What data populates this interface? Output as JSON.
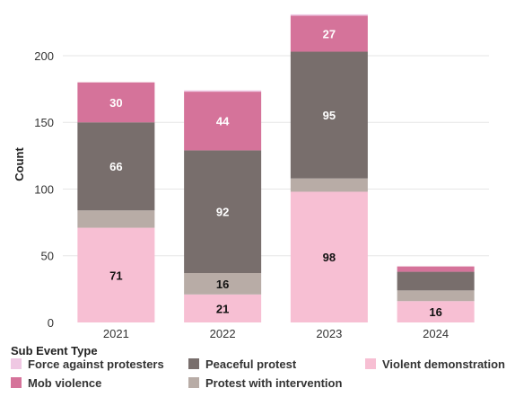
{
  "chart_data": {
    "type": "bar",
    "stacked": true,
    "title": "",
    "xlabel": "",
    "ylabel": "Count",
    "ylim": [
      0,
      235
    ],
    "yticks": [
      0,
      50,
      100,
      150,
      200
    ],
    "grid": true,
    "categories": [
      "2021",
      "2022",
      "2023",
      "2024"
    ],
    "series": [
      {
        "name": "Violent demonstration",
        "color": "#f7bfd3",
        "values": [
          71,
          21,
          98,
          16
        ],
        "label_color": "#111111"
      },
      {
        "name": "Protest with intervention",
        "color": "#b8aca6",
        "values": [
          13,
          16,
          10,
          8
        ],
        "label_color": "#111111"
      },
      {
        "name": "Peaceful protest",
        "color": "#786e6c",
        "values": [
          66,
          92,
          95,
          14
        ],
        "label_color": "#ffffff"
      },
      {
        "name": "Mob violence",
        "color": "#d5739a",
        "values": [
          30,
          44,
          27,
          4
        ],
        "label_color": "#ffffff"
      },
      {
        "name": "Force against protesters",
        "color": "#efc8e3",
        "values": [
          0,
          1,
          1,
          0
        ],
        "label_color": "#111111"
      }
    ],
    "data_labels": [
      {
        "category": "2021",
        "series": "Violent demonstration",
        "text": "71"
      },
      {
        "category": "2021",
        "series": "Peaceful protest",
        "text": "66"
      },
      {
        "category": "2021",
        "series": "Mob violence",
        "text": "30"
      },
      {
        "category": "2022",
        "series": "Violent demonstration",
        "text": "21"
      },
      {
        "category": "2022",
        "series": "Protest with intervention",
        "text": "16"
      },
      {
        "category": "2022",
        "series": "Peaceful protest",
        "text": "92"
      },
      {
        "category": "2022",
        "series": "Mob violence",
        "text": "44"
      },
      {
        "category": "2023",
        "series": "Violent demonstration",
        "text": "98"
      },
      {
        "category": "2023",
        "series": "Peaceful protest",
        "text": "95"
      },
      {
        "category": "2023",
        "series": "Mob violence",
        "text": "27"
      },
      {
        "category": "2024",
        "series": "Violent demonstration",
        "text": "16"
      }
    ],
    "legend": {
      "title": "Sub Event Type",
      "position": "bottom",
      "items": [
        {
          "label": "Force against protesters",
          "color": "#efc8e3"
        },
        {
          "label": "Peaceful protest",
          "color": "#786e6c"
        },
        {
          "label": "Violent demonstration",
          "color": "#f7bfd3"
        },
        {
          "label": "Mob violence",
          "color": "#d5739a"
        },
        {
          "label": "Protest with intervention",
          "color": "#b8aca6"
        }
      ]
    }
  }
}
